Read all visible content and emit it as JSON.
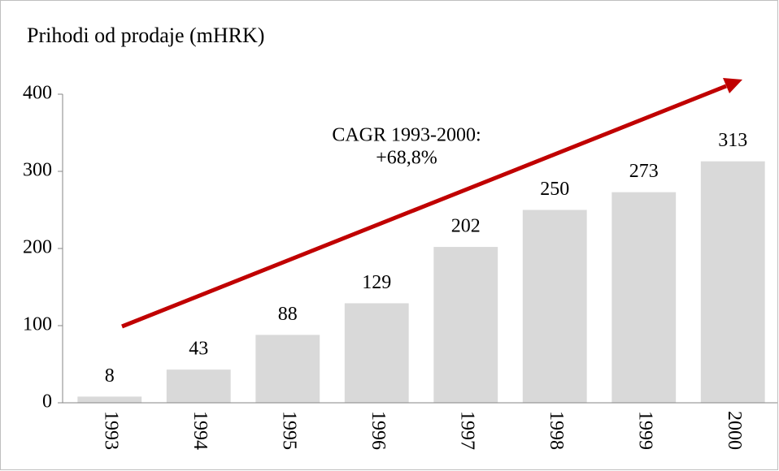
{
  "chart_data": {
    "type": "bar",
    "title": "Prihodi od prodaje (mHRK)",
    "categories": [
      "1993",
      "1994",
      "1995",
      "1996",
      "1997",
      "1998",
      "1999",
      "2000"
    ],
    "values": [
      8,
      43,
      88,
      129,
      202,
      250,
      273,
      313
    ],
    "color": "#d9d9d9",
    "ylim": [
      0,
      400
    ],
    "yticks": [
      0,
      100,
      200,
      300,
      400
    ],
    "grid": false,
    "annotation": [
      "CAGR 1993-2000:",
      "+68,8%"
    ]
  }
}
